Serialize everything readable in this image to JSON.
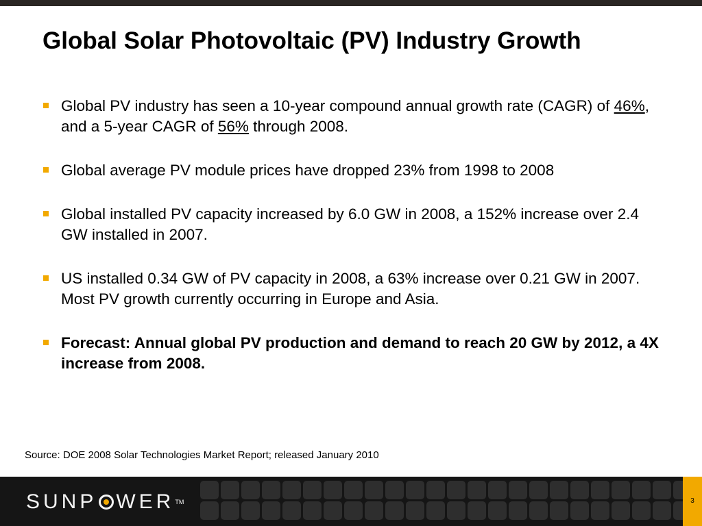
{
  "slide": {
    "title": "Global Solar Photovoltaic (PV) Industry Growth",
    "bullets": [
      {
        "pre": "Global PV industry has seen a 10-year compound annual growth rate (CAGR) of ",
        "u1": "46%",
        "mid": ", and a 5-year CAGR of ",
        "u2": "56%",
        "post": " through 2008."
      },
      {
        "text": "Global average PV module prices have dropped 23% from 1998 to 2008"
      },
      {
        "text": "Global installed PV capacity increased by 6.0 GW in 2008, a 152% increase over 2.4 GW installed in 2007."
      },
      {
        "text": "US installed 0.34 GW of PV capacity in 2008, a 63% increase over 0.21 GW in 2007.  Most PV growth currently occurring in Europe and Asia."
      },
      {
        "text": "Forecast: Annual global PV production and demand to reach 20 GW by 2012, a 4X increase from 2008."
      }
    ],
    "source": "Source: DOE 2008 Solar Technologies Market Report; released January 2010"
  },
  "footer": {
    "logo_left": "SUNP",
    "logo_right": "WER",
    "logo_tm": "TM",
    "page_number": "3"
  },
  "colors": {
    "accent": "#f2a900",
    "top_bar": "#2a2623",
    "footer_bg": "#151515"
  }
}
